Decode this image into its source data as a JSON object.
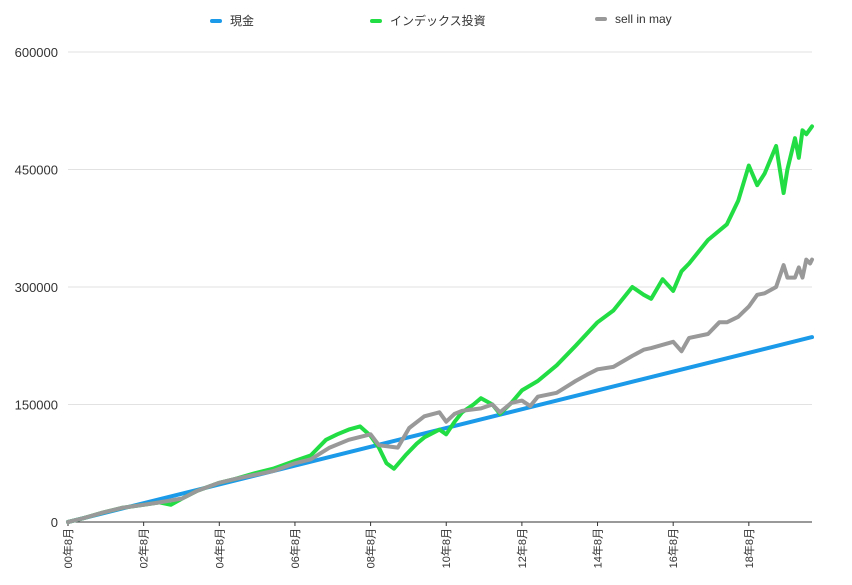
{
  "chart_data": {
    "type": "line",
    "x_ticks": [
      "00年8月",
      "02年8月",
      "04年8月",
      "06年8月",
      "08年8月",
      "10年8月",
      "12年8月",
      "14年8月",
      "16年8月",
      "18年8月"
    ],
    "y_ticks": [
      "0",
      "150000",
      "300000",
      "450000",
      "600000"
    ],
    "ylim": [
      0,
      600000
    ],
    "xlim": [
      2000.58,
      2020.25
    ],
    "grid": true,
    "legend_position": "top",
    "series": [
      {
        "name": "現金",
        "color": "#1a9ae8",
        "points": [
          [
            2000.58,
            0
          ],
          [
            2020.25,
            236000
          ]
        ]
      },
      {
        "name": "インデックス投資",
        "color": "#22dd44",
        "points": [
          [
            2000.58,
            0
          ],
          [
            2001.0,
            5000
          ],
          [
            2001.5,
            12000
          ],
          [
            2002.0,
            18000
          ],
          [
            2002.58,
            22000
          ],
          [
            2003.0,
            25000
          ],
          [
            2003.3,
            22000
          ],
          [
            2003.6,
            30000
          ],
          [
            2004.0,
            40000
          ],
          [
            2004.58,
            50000
          ],
          [
            2005.0,
            55000
          ],
          [
            2005.5,
            62000
          ],
          [
            2006.0,
            68000
          ],
          [
            2006.58,
            78000
          ],
          [
            2007.0,
            85000
          ],
          [
            2007.4,
            105000
          ],
          [
            2007.7,
            112000
          ],
          [
            2008.0,
            118000
          ],
          [
            2008.3,
            122000
          ],
          [
            2008.58,
            110000
          ],
          [
            2008.8,
            95000
          ],
          [
            2009.0,
            75000
          ],
          [
            2009.2,
            68000
          ],
          [
            2009.5,
            85000
          ],
          [
            2009.8,
            100000
          ],
          [
            2010.0,
            108000
          ],
          [
            2010.4,
            118000
          ],
          [
            2010.58,
            112000
          ],
          [
            2010.8,
            128000
          ],
          [
            2011.0,
            140000
          ],
          [
            2011.3,
            150000
          ],
          [
            2011.5,
            158000
          ],
          [
            2011.8,
            150000
          ],
          [
            2012.0,
            138000
          ],
          [
            2012.3,
            152000
          ],
          [
            2012.58,
            168000
          ],
          [
            2013.0,
            180000
          ],
          [
            2013.5,
            200000
          ],
          [
            2014.0,
            225000
          ],
          [
            2014.58,
            255000
          ],
          [
            2015.0,
            270000
          ],
          [
            2015.5,
            300000
          ],
          [
            2015.8,
            290000
          ],
          [
            2016.0,
            285000
          ],
          [
            2016.3,
            310000
          ],
          [
            2016.58,
            295000
          ],
          [
            2016.8,
            320000
          ],
          [
            2017.0,
            330000
          ],
          [
            2017.5,
            360000
          ],
          [
            2018.0,
            380000
          ],
          [
            2018.3,
            410000
          ],
          [
            2018.58,
            455000
          ],
          [
            2018.8,
            430000
          ],
          [
            2019.0,
            445000
          ],
          [
            2019.3,
            480000
          ],
          [
            2019.5,
            420000
          ],
          [
            2019.6,
            450000
          ],
          [
            2019.8,
            490000
          ],
          [
            2019.9,
            465000
          ],
          [
            2020.0,
            500000
          ],
          [
            2020.1,
            495000
          ],
          [
            2020.25,
            505000
          ]
        ]
      },
      {
        "name": "sell in may",
        "color": "#999999",
        "points": [
          [
            2000.58,
            0
          ],
          [
            2001.0,
            5000
          ],
          [
            2001.5,
            12000
          ],
          [
            2002.0,
            18000
          ],
          [
            2002.58,
            22000
          ],
          [
            2003.0,
            25000
          ],
          [
            2003.6,
            30000
          ],
          [
            2004.0,
            40000
          ],
          [
            2004.58,
            50000
          ],
          [
            2005.0,
            55000
          ],
          [
            2005.5,
            60000
          ],
          [
            2006.0,
            65000
          ],
          [
            2006.58,
            75000
          ],
          [
            2007.0,
            80000
          ],
          [
            2007.5,
            95000
          ],
          [
            2008.0,
            105000
          ],
          [
            2008.58,
            112000
          ],
          [
            2008.8,
            98000
          ],
          [
            2009.3,
            95000
          ],
          [
            2009.6,
            120000
          ],
          [
            2010.0,
            135000
          ],
          [
            2010.4,
            140000
          ],
          [
            2010.58,
            128000
          ],
          [
            2010.8,
            138000
          ],
          [
            2011.0,
            142000
          ],
          [
            2011.5,
            145000
          ],
          [
            2011.8,
            150000
          ],
          [
            2012.0,
            140000
          ],
          [
            2012.3,
            152000
          ],
          [
            2012.58,
            155000
          ],
          [
            2012.8,
            148000
          ],
          [
            2013.0,
            160000
          ],
          [
            2013.5,
            165000
          ],
          [
            2014.0,
            180000
          ],
          [
            2014.3,
            188000
          ],
          [
            2014.58,
            195000
          ],
          [
            2015.0,
            198000
          ],
          [
            2015.5,
            212000
          ],
          [
            2015.8,
            220000
          ],
          [
            2016.0,
            222000
          ],
          [
            2016.58,
            230000
          ],
          [
            2016.8,
            218000
          ],
          [
            2017.0,
            235000
          ],
          [
            2017.5,
            240000
          ],
          [
            2017.8,
            255000
          ],
          [
            2018.0,
            255000
          ],
          [
            2018.3,
            262000
          ],
          [
            2018.58,
            275000
          ],
          [
            2018.8,
            290000
          ],
          [
            2019.0,
            292000
          ],
          [
            2019.3,
            300000
          ],
          [
            2019.5,
            328000
          ],
          [
            2019.6,
            312000
          ],
          [
            2019.8,
            312000
          ],
          [
            2019.9,
            325000
          ],
          [
            2020.0,
            312000
          ],
          [
            2020.1,
            335000
          ],
          [
            2020.2,
            330000
          ],
          [
            2020.25,
            335000
          ]
        ]
      }
    ]
  }
}
